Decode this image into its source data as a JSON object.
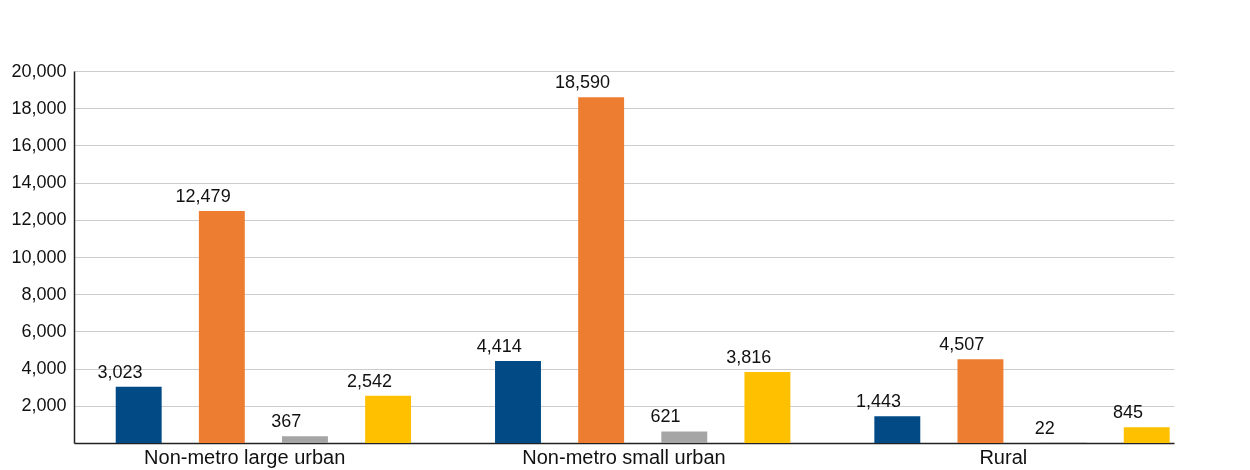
{
  "chart_data": {
    "type": "bar",
    "categories": [
      "Non-metro large urban",
      "Non-metro small urban",
      "Rural"
    ],
    "series": [
      {
        "color": "#024a86",
        "values": [
          3023,
          4414,
          1443
        ],
        "value_labels": [
          "3,023",
          "4,414",
          "1,443"
        ]
      },
      {
        "color": "#ed7d31",
        "values": [
          12479,
          18590,
          4507
        ],
        "value_labels": [
          "12,479",
          "18,590",
          "4,507"
        ]
      },
      {
        "color": "#a5a5a5",
        "values": [
          367,
          621,
          22
        ],
        "value_labels": [
          "367",
          "621",
          "22"
        ]
      },
      {
        "color": "#ffc000",
        "values": [
          2542,
          3816,
          845
        ],
        "value_labels": [
          "2,542",
          "3,816",
          "845"
        ]
      }
    ],
    "ylim": [
      0,
      20000
    ],
    "yticks": [
      {
        "value": 2000,
        "label": "2,000"
      },
      {
        "value": 4000,
        "label": "4,000"
      },
      {
        "value": 6000,
        "label": "6,000"
      },
      {
        "value": 8000,
        "label": "8,000"
      },
      {
        "value": 10000,
        "label": "10,000"
      },
      {
        "value": 12000,
        "label": "12,000"
      },
      {
        "value": 14000,
        "label": "14,000"
      },
      {
        "value": 16000,
        "label": "16,000"
      },
      {
        "value": 18000,
        "label": "18,000"
      },
      {
        "value": 20000,
        "label": "20,000"
      }
    ],
    "grid": "y"
  }
}
